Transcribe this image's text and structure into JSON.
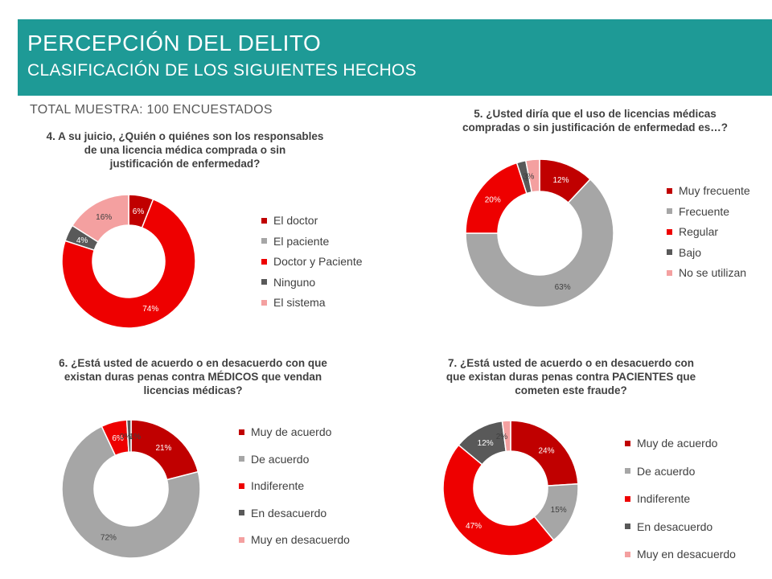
{
  "header": {
    "title": "PERCEPCIÓN DEL DELITO",
    "subtitle": "CLASIFICACIÓN DE LOS SIGUIENTES HECHOS"
  },
  "sample_label": "TOTAL MUESTRA: 100 ENCUESTADOS",
  "colors": {
    "header_bg": "#1e9a96",
    "dark_red": "#c00000",
    "gray": "#a6a6a6",
    "red": "#ee0000",
    "dark_gray": "#595959",
    "pink": "#f4a0a0"
  },
  "chart_data": [
    {
      "type": "pie",
      "title": "4. A su juicio, ¿Quién o quiénes son los responsables de una licencia médica comprada o sin justificación de enfermedad?",
      "title_lines": [
        "4. A su juicio, ¿Quién o quiénes son los responsables",
        "de una licencia médica comprada o sin",
        "justificación de enfermedad?"
      ],
      "legend_position": "right",
      "categories": [
        "El doctor",
        "El paciente",
        "Doctor y Paciente",
        "Ninguno",
        "El sistema"
      ],
      "values": [
        6,
        0,
        74,
        4,
        16
      ],
      "labels": [
        "6%",
        "0%",
        "74%",
        "4%",
        "16%"
      ],
      "colors": [
        "#c00000",
        "#a6a6a6",
        "#ee0000",
        "#595959",
        "#f4a0a0"
      ]
    },
    {
      "type": "pie",
      "title": "5. ¿Usted diría que el uso de licencias médicas compradas o sin justificación de enfermedad es…?",
      "title_lines": [
        "5. ¿Usted diría que el uso de licencias médicas",
        "compradas o sin justificación de enfermedad es…?"
      ],
      "legend_position": "right",
      "categories": [
        "Muy frecuente",
        "Frecuente",
        "Regular",
        "Bajo",
        "No se utilizan"
      ],
      "values": [
        12,
        63,
        20,
        2,
        3
      ],
      "labels": [
        "12%",
        "63%",
        "20%",
        "2%",
        "3%"
      ],
      "colors": [
        "#c00000",
        "#a6a6a6",
        "#ee0000",
        "#595959",
        "#f4a0a0"
      ]
    },
    {
      "type": "pie",
      "title": "6. ¿Está usted de acuerdo o en desacuerdo con que existan duras penas contra MÉDICOS que vendan licencias médicas?",
      "title_lines": [
        "6. ¿Está usted de acuerdo o en desacuerdo con que",
        "existan duras penas contra MÉDICOS que vendan",
        "licencias médicas?"
      ],
      "legend_position": "right",
      "categories": [
        "Muy de acuerdo",
        "De acuerdo",
        "Indiferente",
        "En desacuerdo",
        "Muy en desacuerdo"
      ],
      "values": [
        21,
        72,
        6,
        1,
        0
      ],
      "labels": [
        "21%",
        "72%",
        "6%",
        "1%",
        "0%"
      ],
      "colors": [
        "#c00000",
        "#a6a6a6",
        "#ee0000",
        "#595959",
        "#f4a0a0"
      ]
    },
    {
      "type": "pie",
      "title": "7. ¿Está usted de acuerdo o en desacuerdo con que existan duras penas contra PACIENTES que cometen este fraude?",
      "title_lines": [
        "7. ¿Está usted de acuerdo o en desacuerdo con",
        "que existan duras penas contra PACIENTES que",
        "cometen este fraude?"
      ],
      "legend_position": "right",
      "categories": [
        "Muy de acuerdo",
        "De acuerdo",
        "Indiferente",
        "En desacuerdo",
        "Muy en desacuerdo"
      ],
      "values": [
        24,
        15,
        47,
        12,
        2
      ],
      "labels": [
        "24%",
        "15%",
        "47%",
        "12%",
        "2%"
      ],
      "colors": [
        "#c00000",
        "#a6a6a6",
        "#ee0000",
        "#595959",
        "#f4a0a0"
      ]
    }
  ]
}
